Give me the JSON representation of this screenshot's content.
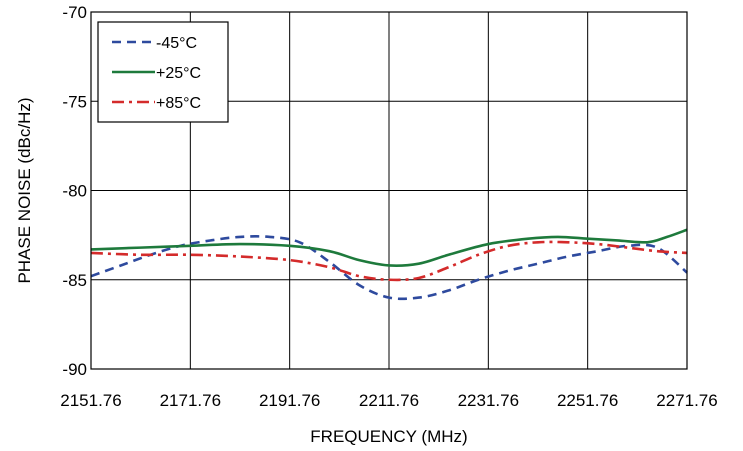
{
  "chart_data": {
    "type": "line",
    "title": "",
    "xlabel": "FREQUENCY (MHz)",
    "ylabel": "PHASE NOISE  (dBc/Hz)",
    "xlim": [
      2151.76,
      2271.76
    ],
    "ylim": [
      -90,
      -70
    ],
    "x_ticks": [
      "2151.76",
      "2171.76",
      "2191.76",
      "2211.76",
      "2231.76",
      "2251.76",
      "2271.76"
    ],
    "y_ticks": [
      "-70",
      "-75",
      "-80",
      "-85",
      "-90"
    ],
    "grid": true,
    "legend_position": "top-left",
    "series": [
      {
        "name": "-45°C",
        "color": "#2e4a9e",
        "dash": "dashed",
        "x": [
          2151.76,
          2157.76,
          2163.76,
          2169.76,
          2175.76,
          2181.76,
          2187.76,
          2193.76,
          2199.76,
          2205.76,
          2211.76,
          2217.76,
          2223.76,
          2229.76,
          2235.76,
          2241.76,
          2247.76,
          2253.76,
          2259.76,
          2265.76,
          2271.76
        ],
        "y": [
          -84.8,
          -84.2,
          -83.6,
          -83.1,
          -82.8,
          -82.6,
          -82.6,
          -82.9,
          -84.0,
          -85.3,
          -86.0,
          -86.0,
          -85.6,
          -85.0,
          -84.5,
          -84.1,
          -83.7,
          -83.4,
          -83.1,
          -83.2,
          -84.6
        ]
      },
      {
        "name": "+25°C",
        "color": "#1e7a3c",
        "dash": "solid",
        "x": [
          2151.76,
          2161.76,
          2171.76,
          2181.76,
          2191.76,
          2199.76,
          2205.76,
          2211.76,
          2217.76,
          2223.76,
          2231.76,
          2239.76,
          2245.76,
          2251.76,
          2257.76,
          2263.76,
          2267.76,
          2271.76
        ],
        "y": [
          -83.3,
          -83.2,
          -83.1,
          -83.0,
          -83.1,
          -83.4,
          -83.9,
          -84.2,
          -84.1,
          -83.6,
          -83.0,
          -82.7,
          -82.6,
          -82.7,
          -82.8,
          -82.9,
          -82.6,
          -82.2
        ]
      },
      {
        "name": "+85°C",
        "color": "#d42b2b",
        "dash": "dashdot",
        "x": [
          2151.76,
          2161.76,
          2171.76,
          2181.76,
          2191.76,
          2199.76,
          2205.76,
          2211.76,
          2217.76,
          2223.76,
          2229.76,
          2235.76,
          2241.76,
          2247.76,
          2253.76,
          2259.76,
          2265.76,
          2271.76
        ],
        "y": [
          -83.5,
          -83.6,
          -83.6,
          -83.7,
          -83.9,
          -84.3,
          -84.8,
          -85.0,
          -84.9,
          -84.3,
          -83.6,
          -83.1,
          -82.9,
          -82.9,
          -83.0,
          -83.2,
          -83.4,
          -83.5
        ]
      }
    ]
  }
}
